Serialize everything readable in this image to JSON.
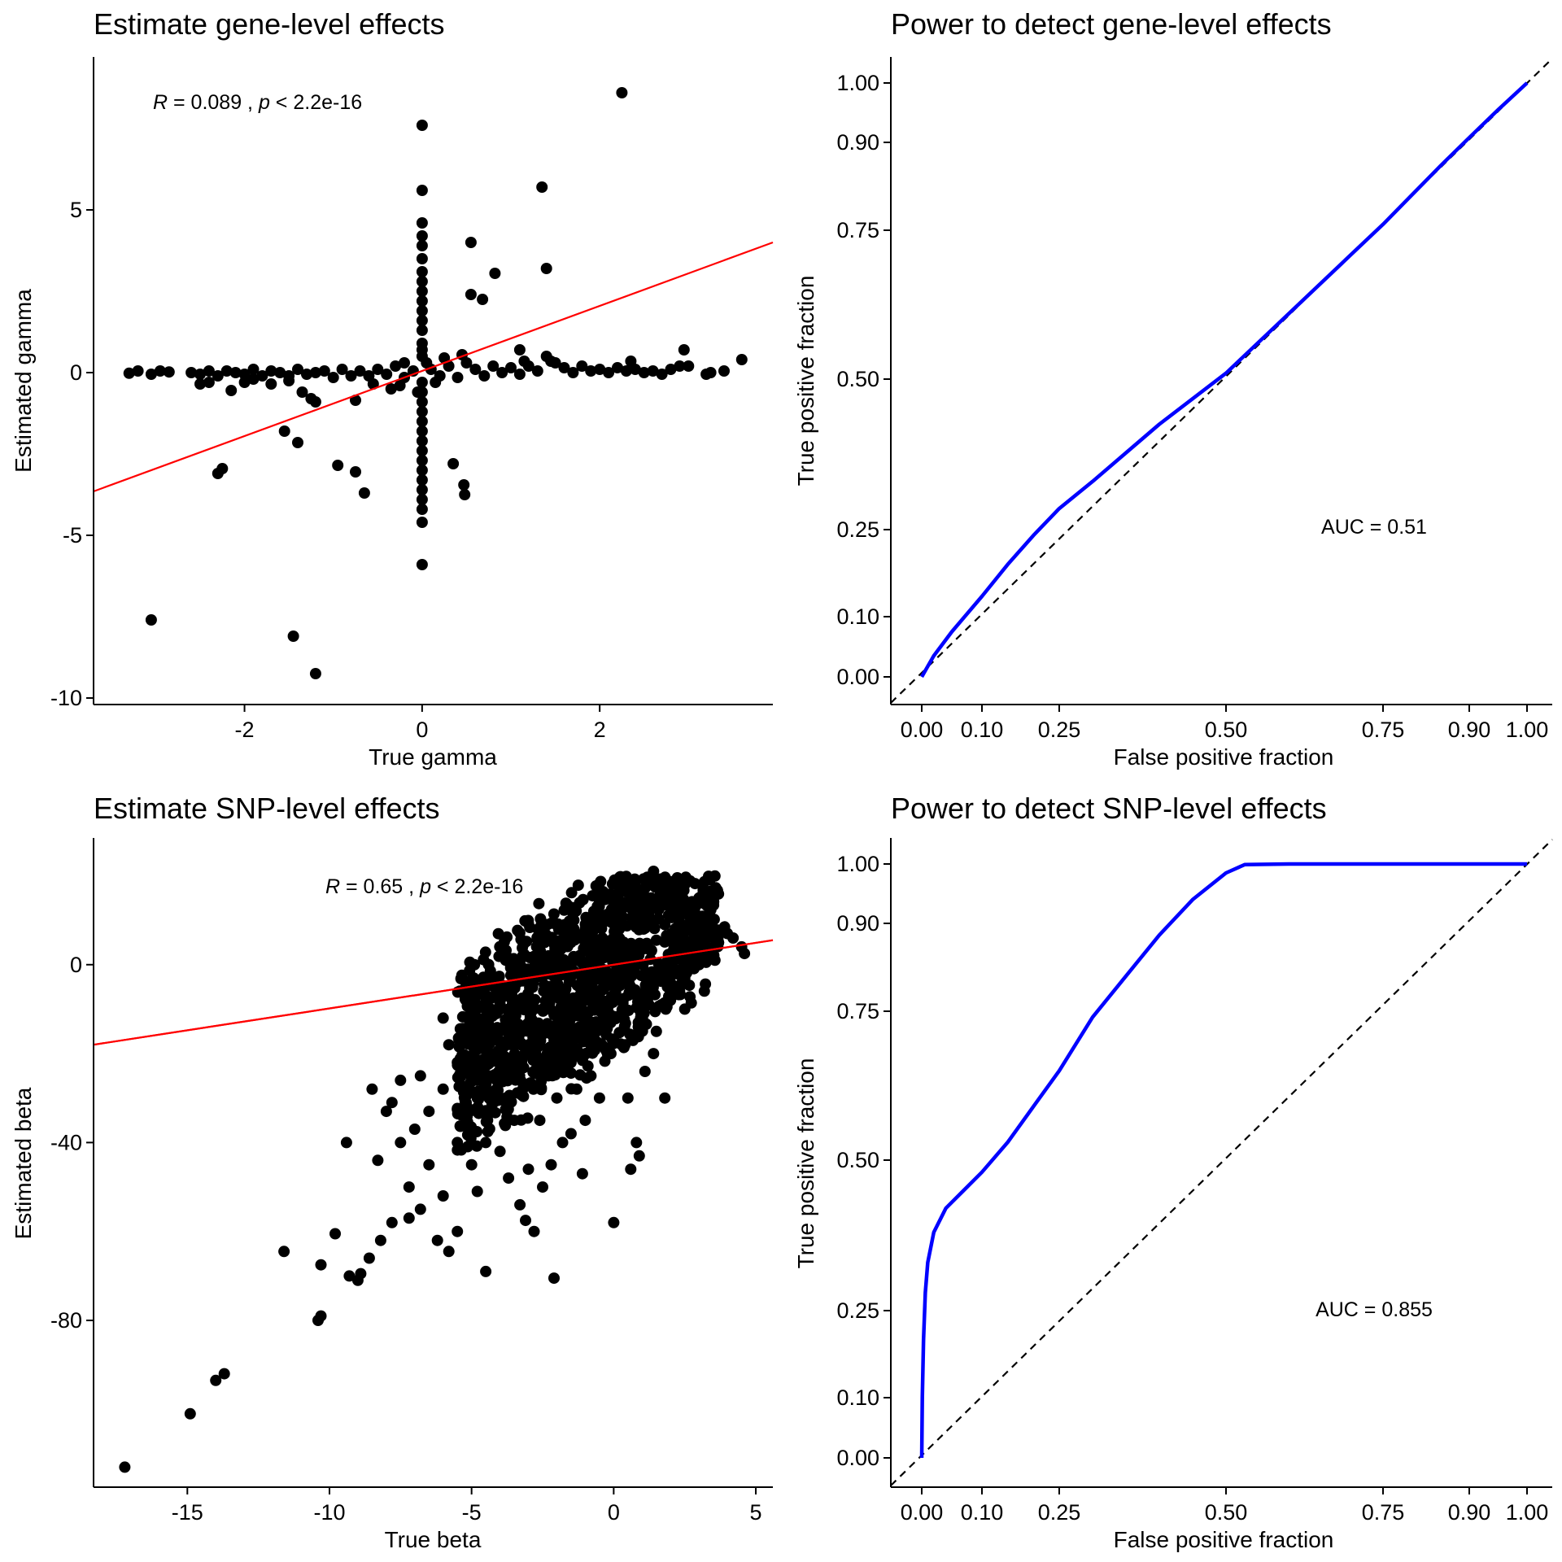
{
  "chart_data": [
    {
      "type": "scatter",
      "title": "Estimate gene-level effects",
      "xlabel": "True gamma",
      "ylabel": "Estimated gamma",
      "xlim": [
        -3.7,
        3.95
      ],
      "ylim": [
        -10.2,
        9.7
      ],
      "xticks": [
        -2,
        0,
        2
      ],
      "yticks": [
        -10,
        -5,
        0,
        5
      ],
      "annotation": {
        "r_label": "R",
        "r_value": " = 0.089 , ",
        "p_label": "p",
        "p_value": " < 2.2e-16",
        "x": -3.0,
        "y": 8.0
      },
      "fit_line": {
        "color": "#FF0000",
        "x": [
          -3.7,
          3.95
        ],
        "y": [
          -3.65,
          4.0
        ]
      },
      "points": [
        [
          2.25,
          8.6
        ],
        [
          0.0,
          7.6
        ],
        [
          1.35,
          5.7
        ],
        [
          0.0,
          5.6
        ],
        [
          0.0,
          4.6
        ],
        [
          0.0,
          4.2
        ],
        [
          0.0,
          3.9
        ],
        [
          0.55,
          4.0
        ],
        [
          0.0,
          3.5
        ],
        [
          0.0,
          3.1
        ],
        [
          0.0,
          2.8
        ],
        [
          0.0,
          2.5
        ],
        [
          0.0,
          2.2
        ],
        [
          1.4,
          3.2
        ],
        [
          0.82,
          3.05
        ],
        [
          0.55,
          2.4
        ],
        [
          0.68,
          2.25
        ],
        [
          0.0,
          1.9
        ],
        [
          0.0,
          1.6
        ],
        [
          0.0,
          1.3
        ],
        [
          0.0,
          0.9
        ],
        [
          0.0,
          0.7
        ],
        [
          0.0,
          0.5
        ],
        [
          1.1,
          0.7
        ],
        [
          2.95,
          0.7
        ],
        [
          3.6,
          0.4
        ],
        [
          3.4,
          0.05
        ],
        [
          3.25,
          0.0
        ],
        [
          3.2,
          -0.05
        ],
        [
          -3.3,
          -0.02
        ],
        [
          -3.2,
          0.05
        ],
        [
          -3.05,
          -0.05
        ],
        [
          -2.95,
          0.05
        ],
        [
          -2.85,
          0.02
        ],
        [
          -2.6,
          0.0
        ],
        [
          -2.5,
          -0.05
        ],
        [
          -2.4,
          0.05
        ],
        [
          -2.3,
          -0.1
        ],
        [
          -2.2,
          0.05
        ],
        [
          -2.1,
          0.0
        ],
        [
          -2.0,
          -0.05
        ],
        [
          -1.9,
          0.1
        ],
        [
          -1.8,
          -0.1
        ],
        [
          -1.7,
          0.05
        ],
        [
          -1.6,
          0.0
        ],
        [
          -1.5,
          -0.1
        ],
        [
          -1.4,
          0.1
        ],
        [
          -1.3,
          -0.05
        ],
        [
          -1.2,
          0.0
        ],
        [
          -1.1,
          0.05
        ],
        [
          -1.0,
          -0.15
        ],
        [
          -0.9,
          0.1
        ],
        [
          -0.8,
          -0.1
        ],
        [
          -0.7,
          0.05
        ],
        [
          -0.6,
          -0.1
        ],
        [
          -0.5,
          0.1
        ],
        [
          -0.4,
          -0.05
        ],
        [
          -0.3,
          0.2
        ],
        [
          -0.2,
          -0.15
        ],
        [
          -0.1,
          0.05
        ],
        [
          0.1,
          0.1
        ],
        [
          0.2,
          -0.1
        ],
        [
          0.3,
          0.2
        ],
        [
          0.4,
          -0.15
        ],
        [
          0.5,
          0.3
        ],
        [
          0.6,
          0.1
        ],
        [
          0.7,
          -0.1
        ],
        [
          0.8,
          0.2
        ],
        [
          0.9,
          0.0
        ],
        [
          1.0,
          0.15
        ],
        [
          1.1,
          -0.05
        ],
        [
          1.2,
          0.2
        ],
        [
          1.3,
          0.05
        ],
        [
          1.4,
          0.5
        ],
        [
          1.45,
          0.35
        ],
        [
          1.5,
          0.3
        ],
        [
          1.6,
          0.15
        ],
        [
          1.7,
          0.0
        ],
        [
          1.8,
          0.2
        ],
        [
          1.9,
          0.05
        ],
        [
          2.0,
          0.1
        ],
        [
          2.1,
          0.0
        ],
        [
          2.2,
          0.15
        ],
        [
          2.3,
          0.05
        ],
        [
          2.4,
          0.1
        ],
        [
          2.5,
          0.0
        ],
        [
          2.6,
          0.05
        ],
        [
          2.7,
          -0.05
        ],
        [
          2.8,
          0.1
        ],
        [
          2.9,
          0.2
        ],
        [
          3.0,
          0.2
        ],
        [
          2.35,
          0.35
        ],
        [
          1.15,
          0.35
        ],
        [
          -2.4,
          -0.3
        ],
        [
          -2.0,
          -0.3
        ],
        [
          -1.9,
          -0.2
        ],
        [
          -1.7,
          -0.35
        ],
        [
          -1.5,
          -0.25
        ],
        [
          -1.35,
          -0.6
        ],
        [
          -1.25,
          -0.8
        ],
        [
          -1.2,
          -0.9
        ],
        [
          -0.75,
          -0.85
        ],
        [
          -2.15,
          -0.55
        ],
        [
          -2.5,
          -0.35
        ],
        [
          -0.55,
          -0.35
        ],
        [
          -0.35,
          -0.5
        ],
        [
          -0.25,
          -0.4
        ],
        [
          -0.2,
          0.3
        ],
        [
          0.25,
          0.45
        ],
        [
          0.45,
          0.55
        ],
        [
          -0.05,
          -0.6
        ],
        [
          0.05,
          0.3
        ],
        [
          0.15,
          -0.3
        ],
        [
          -1.55,
          -1.8
        ],
        [
          -1.4,
          -2.15
        ],
        [
          -0.95,
          -2.85
        ],
        [
          -0.75,
          -3.05
        ],
        [
          -0.65,
          -3.7
        ],
        [
          -2.3,
          -3.1
        ],
        [
          -2.25,
          -2.95
        ],
        [
          0.35,
          -2.8
        ],
        [
          0.47,
          -3.45
        ],
        [
          0.48,
          -3.75
        ],
        [
          0.0,
          -0.3
        ],
        [
          0.0,
          -0.6
        ],
        [
          0.0,
          -0.9
        ],
        [
          0.0,
          -1.2
        ],
        [
          0.0,
          -1.5
        ],
        [
          0.0,
          -1.8
        ],
        [
          0.0,
          -2.1
        ],
        [
          0.0,
          -2.4
        ],
        [
          0.0,
          -2.7
        ],
        [
          0.0,
          -3.0
        ],
        [
          0.0,
          -3.3
        ],
        [
          0.0,
          -3.6
        ],
        [
          0.0,
          -3.9
        ],
        [
          0.0,
          -4.2
        ],
        [
          0.0,
          -4.6
        ],
        [
          0.0,
          -5.9
        ],
        [
          -3.05,
          -7.6
        ],
        [
          -1.45,
          -8.1
        ],
        [
          -1.2,
          -9.25
        ]
      ]
    },
    {
      "type": "line",
      "title": "Power to detect gene-level effects",
      "xlabel": "False positive fraction",
      "ylabel": "True positive fraction",
      "xlim": [
        -0.1,
        1.1
      ],
      "ylim": [
        -0.1,
        1.1
      ],
      "xticks": [
        "0.00",
        "0.10",
        "0.25",
        "0.50",
        "0.75",
        "0.90",
        "1.00"
      ],
      "yticks": [
        "0.00",
        "0.10",
        "0.25",
        "0.50",
        "0.75",
        "0.90",
        "1.00"
      ],
      "scale": "probit-style (calibrated to printed ticks)",
      "annotation": {
        "text": "AUC = 0.51",
        "x": 0.75,
        "y": 0.25
      },
      "series": [
        {
          "color": "#0000FF",
          "x": [
            0.0,
            0.02,
            0.05,
            0.1,
            0.15,
            0.2,
            0.25,
            0.3,
            0.4,
            0.5,
            0.6,
            0.7,
            0.75,
            0.8,
            0.85,
            0.9,
            0.95,
            1.0
          ],
          "y": [
            0.0,
            0.035,
            0.075,
            0.135,
            0.19,
            0.24,
            0.285,
            0.33,
            0.425,
            0.51,
            0.61,
            0.71,
            0.76,
            0.81,
            0.86,
            0.908,
            0.955,
            1.0
          ]
        }
      ]
    },
    {
      "type": "scatter",
      "title": "Estimate SNP-level effects",
      "xlabel": "True beta",
      "ylabel": "Estimated beta",
      "xlim": [
        -18.3,
        5.6
      ],
      "ylim": [
        -117.5,
        28.5
      ],
      "xticks": [
        -15,
        -10,
        -5,
        0,
        5
      ],
      "yticks": [
        -80,
        -40,
        0
      ],
      "annotation": {
        "r_label": "R",
        "r_value": " = 0.65 , ",
        "p_label": "p",
        "p_value": " < 2.2e-16",
        "x": -10.0,
        "y": 17.0
      },
      "fit_line": {
        "color": "#FF0000",
        "x": [
          -18.3,
          5.6
        ],
        "y": [
          -18.0,
          5.5
        ]
      },
      "points": [
        [
          -17.2,
          -113.0
        ],
        [
          -14.9,
          -101.0
        ],
        [
          -14.0,
          -93.5
        ],
        [
          -13.7,
          -92.0
        ],
        [
          -11.6,
          -64.5
        ],
        [
          -10.4,
          -80.0
        ],
        [
          -10.3,
          -79.0
        ],
        [
          -10.3,
          -67.5
        ],
        [
          -9.8,
          -60.5
        ],
        [
          -9.3,
          -70.0
        ],
        [
          -9.0,
          -71.0
        ],
        [
          -8.9,
          -69.5
        ],
        [
          -8.6,
          -66.0
        ],
        [
          -8.2,
          -62.0
        ],
        [
          -7.8,
          -58.0
        ],
        [
          -7.2,
          -57.0
        ],
        [
          -6.8,
          -55.0
        ],
        [
          -6.2,
          -62.0
        ],
        [
          -5.5,
          -60.0
        ],
        [
          -5.8,
          -64.5
        ],
        [
          -4.5,
          -69.0
        ],
        [
          -2.1,
          -70.5
        ],
        [
          0.0,
          -58.0
        ],
        [
          -3.1,
          -57.5
        ],
        [
          -2.8,
          -60.0
        ],
        [
          -9.4,
          -40.0
        ],
        [
          -8.3,
          -44.0
        ],
        [
          -7.5,
          -40.0
        ],
        [
          -7.0,
          -37.0
        ],
        [
          -6.5,
          -33.0
        ],
        [
          -6.0,
          -28.0
        ],
        [
          -5.5,
          -22.0
        ],
        [
          -5.0,
          -18.0
        ],
        [
          -4.5,
          -12.0
        ],
        [
          -4.0,
          -8.0
        ],
        [
          -3.5,
          -3.0
        ],
        [
          -3.0,
          -1.0
        ],
        [
          -2.5,
          2.0
        ],
        [
          -2.0,
          3.0
        ],
        [
          -1.5,
          5.0
        ],
        [
          -1.0,
          8.0
        ],
        [
          -0.5,
          10.0
        ],
        [
          0.0,
          12.0
        ],
        [
          0.5,
          14.0
        ],
        [
          1.0,
          16.0
        ],
        [
          1.4,
          21.0
        ],
        [
          2.0,
          17.0
        ],
        [
          2.5,
          18.0
        ],
        [
          3.0,
          15.0
        ],
        [
          3.5,
          10.0
        ],
        [
          4.0,
          7.0
        ],
        [
          4.5,
          4.0
        ],
        [
          4.6,
          2.5
        ],
        [
          -4.8,
          -30.0
        ],
        [
          -4.5,
          -25.0
        ],
        [
          -4.0,
          -20.0
        ],
        [
          -3.8,
          -30.0
        ],
        [
          -3.5,
          -35.0
        ],
        [
          -3.2,
          -28.0
        ],
        [
          -3.0,
          -20.0
        ],
        [
          -2.8,
          -15.0
        ],
        [
          -2.5,
          -10.0
        ],
        [
          -2.3,
          -25.0
        ],
        [
          -2.0,
          -30.0
        ],
        [
          -1.8,
          -20.0
        ],
        [
          -1.5,
          -12.0
        ],
        [
          -1.2,
          -5.0
        ],
        [
          -1.0,
          -15.0
        ],
        [
          -0.8,
          -25.0
        ],
        [
          -0.5,
          -10.0
        ],
        [
          -0.3,
          -5.0
        ],
        [
          0.0,
          -2.0
        ],
        [
          0.3,
          2.0
        ],
        [
          0.6,
          -5.0
        ],
        [
          1.0,
          -10.0
        ],
        [
          1.5,
          -15.0
        ],
        [
          2.0,
          -8.0
        ],
        [
          2.5,
          -3.0
        ],
        [
          3.0,
          0.0
        ],
        [
          0.5,
          -30.0
        ],
        [
          0.8,
          -40.0
        ],
        [
          0.6,
          -46.0
        ],
        [
          0.9,
          -43.0
        ],
        [
          1.4,
          -20.0
        ],
        [
          2.5,
          -10.0
        ],
        [
          -5.5,
          -40.0
        ],
        [
          -5.0,
          -45.0
        ],
        [
          -4.5,
          -40.0
        ],
        [
          -4.0,
          -42.0
        ],
        [
          -3.7,
          -48.0
        ],
        [
          -3.0,
          -46.0
        ],
        [
          -2.5,
          -50.0
        ],
        [
          -2.2,
          -45.0
        ],
        [
          -1.8,
          -40.0
        ],
        [
          -1.5,
          -38.0
        ],
        [
          -1.0,
          -35.0
        ],
        [
          -0.5,
          -30.0
        ],
        [
          -6.5,
          -45.0
        ],
        [
          -7.2,
          -50.0
        ],
        [
          -6.0,
          -52.0
        ],
        [
          -3.3,
          -54.0
        ],
        [
          -1.1,
          -47.0
        ],
        [
          -4.8,
          -51.0
        ],
        [
          -2.0,
          -3.0
        ],
        [
          -1.6,
          0.0
        ],
        [
          -1.2,
          2.0
        ],
        [
          -0.8,
          4.0
        ],
        [
          -0.4,
          6.0
        ],
        [
          0.2,
          8.0
        ],
        [
          0.8,
          10.0
        ],
        [
          1.2,
          12.0
        ],
        [
          1.8,
          9.0
        ],
        [
          2.2,
          6.0
        ],
        [
          2.8,
          4.0
        ],
        [
          3.2,
          3.0
        ],
        [
          -0.9,
          -8.0
        ],
        [
          -0.2,
          -12.0
        ],
        [
          0.4,
          -18.0
        ],
        [
          -1.5,
          -22.0
        ],
        [
          -2.6,
          -35.0
        ],
        [
          -3.6,
          -10.0
        ],
        [
          -4.2,
          -15.0
        ],
        [
          -5.2,
          -8.0
        ],
        [
          -6.0,
          -12.0
        ],
        [
          -5.8,
          -18.0
        ],
        [
          -6.8,
          -25.0
        ],
        [
          -7.5,
          -26.0
        ],
        [
          -8.0,
          -33.0
        ],
        [
          -8.5,
          -28.0
        ],
        [
          -7.8,
          -31.0
        ],
        [
          -3.9,
          -24.0
        ],
        [
          -2.6,
          -18.0
        ],
        [
          -1.3,
          -28.0
        ],
        [
          -0.1,
          -20.0
        ],
        [
          1.1,
          -24.0
        ],
        [
          1.8,
          -30.0
        ],
        [
          -4.9,
          0.0
        ],
        [
          -4.4,
          0.0
        ],
        [
          -3.8,
          1.0
        ],
        [
          -3.2,
          2.0
        ],
        [
          -1.4,
          10.0
        ],
        [
          -0.7,
          12.0
        ],
        [
          0.0,
          15.0
        ],
        [
          0.7,
          17.0
        ],
        [
          1.2,
          19.0
        ],
        [
          2.3,
          18.5
        ],
        [
          3.4,
          9.0
        ],
        [
          3.9,
          8.5
        ],
        [
          4.2,
          6.0
        ]
      ]
    },
    {
      "type": "line",
      "title": "Power to detect SNP-level effects",
      "xlabel": "False positive fraction",
      "ylabel": "True positive fraction",
      "xlim": [
        -0.1,
        1.1
      ],
      "ylim": [
        -0.1,
        1.1
      ],
      "xticks": [
        "0.00",
        "0.10",
        "0.25",
        "0.50",
        "0.75",
        "0.90",
        "1.00"
      ],
      "yticks": [
        "0.00",
        "0.10",
        "0.25",
        "0.50",
        "0.75",
        "0.90",
        "1.00"
      ],
      "scale": "probit-style (calibrated to printed ticks)",
      "annotation": {
        "text": "AUC = 0.855",
        "x": 0.75,
        "y": 0.25
      },
      "series": [
        {
          "color": "#0000FF",
          "x": [
            0.0,
            0.001,
            0.003,
            0.006,
            0.01,
            0.02,
            0.04,
            0.07,
            0.1,
            0.15,
            0.2,
            0.25,
            0.3,
            0.35,
            0.4,
            0.45,
            0.5,
            0.53,
            0.6,
            0.7,
            0.8,
            0.9,
            1.0
          ],
          "y": [
            0.0,
            0.1,
            0.2,
            0.28,
            0.33,
            0.38,
            0.42,
            0.45,
            0.48,
            0.53,
            0.59,
            0.65,
            0.74,
            0.81,
            0.88,
            0.94,
            0.985,
            0.999,
            1.0,
            1.0,
            1.0,
            1.0,
            1.0
          ]
        }
      ]
    }
  ]
}
